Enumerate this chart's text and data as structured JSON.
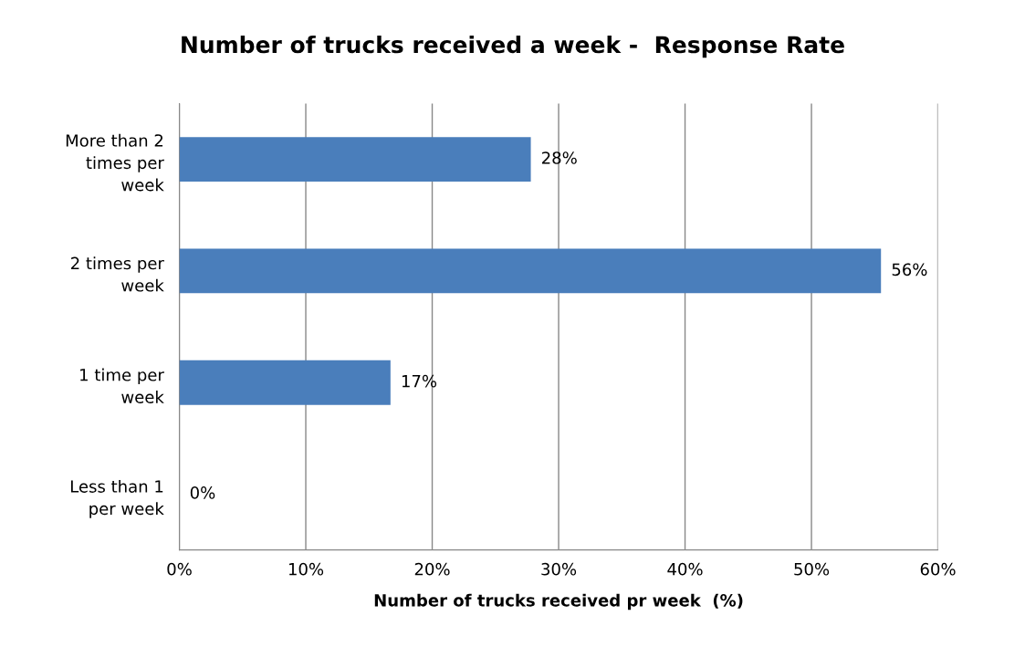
{
  "chart_data": {
    "type": "bar",
    "orientation": "horizontal",
    "title": "Number of trucks received a week -  Response Rate",
    "xlabel": "Number of trucks received pr week  (%)",
    "categories": [
      "More than 2 times per week",
      "2 times per week",
      "1 time per week",
      "Less than 1 per week"
    ],
    "values": [
      27.8,
      55.5,
      16.7,
      0
    ],
    "value_labels": [
      "28%",
      "56%",
      "17%",
      "0%"
    ],
    "color": "#4a7ebb",
    "xlim": [
      0,
      60
    ],
    "xticks": [
      {
        "value": 0,
        "label": "0%"
      },
      {
        "value": 10,
        "label": "10%"
      },
      {
        "value": 20,
        "label": "20%"
      },
      {
        "value": 30,
        "label": "30%"
      },
      {
        "value": 40,
        "label": "40%"
      },
      {
        "value": 50,
        "label": "50%"
      },
      {
        "value": 60,
        "label": "60%"
      }
    ],
    "grid": "x"
  }
}
